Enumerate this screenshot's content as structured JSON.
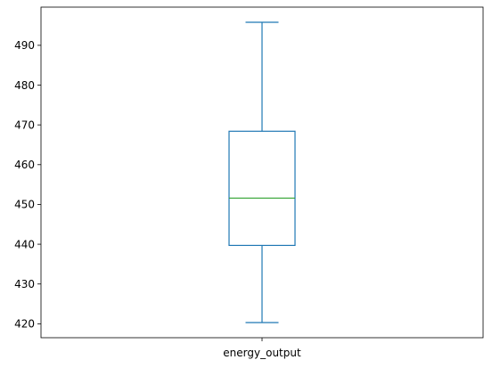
{
  "chart_data": {
    "type": "box",
    "categories": [
      "energy_output"
    ],
    "series": [
      {
        "stats": {
          "whisker_low": 420.3,
          "q1": 439.7,
          "median": 451.6,
          "q3": 468.4,
          "whisker_high": 495.8
        }
      }
    ],
    "title": "",
    "xlabel": "",
    "ylabel": "",
    "ylim": [
      416.5,
      499.6
    ],
    "yticks": [
      420,
      430,
      440,
      450,
      460,
      470,
      480,
      490
    ],
    "grid": false,
    "colors": {
      "box": "#1f77b4",
      "median": "#2ca02c",
      "axis": "#000000"
    }
  }
}
